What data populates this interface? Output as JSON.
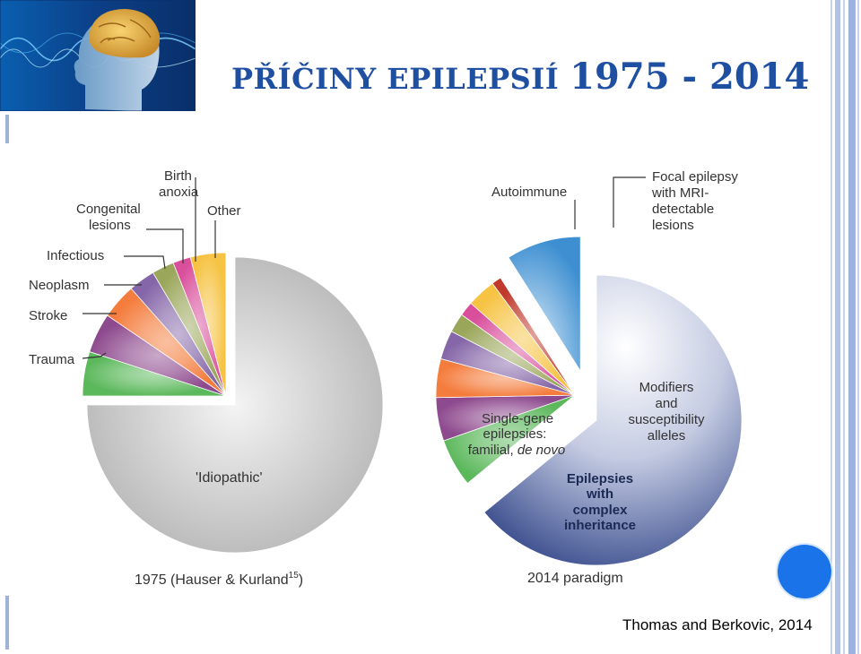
{
  "slide": {
    "title_part1": "PŘÍČINY EPILEPSIÍ",
    "title_part2": "1975 - 2014",
    "citation": "Thomas and Berkovic, 2014"
  },
  "colors": {
    "title": "#1e4fa1",
    "accent_dot": "#1a73e8",
    "idiopathic": "#d0d0d0",
    "trauma": "#5bb85b",
    "stroke": "#8e4a8e",
    "neoplasm": "#f47c3c",
    "infectious": "#8566a8",
    "congenital": "#9aa65a",
    "birth_anoxia": "#d94f9c",
    "other": "#f6c343",
    "autoimmune": "#c0392b",
    "focal": "#3d8fd1",
    "genetic": "#30468e"
  },
  "chart_data": [
    {
      "type": "pie",
      "title": "1975 (Hauser & Kurland",
      "title_superscript": "15",
      "title_close": ")",
      "slices": [
        {
          "label": "'Idiopathic'",
          "value": 75,
          "color": "#d0d0d0"
        },
        {
          "label": "Trauma",
          "value": 5,
          "color": "#5bb85b"
        },
        {
          "label": "Stroke",
          "value": 4.5,
          "color": "#8e4a8e"
        },
        {
          "label": "Neoplasm",
          "value": 4,
          "color": "#f47c3c"
        },
        {
          "label": "Infectious",
          "value": 3,
          "color": "#8566a8"
        },
        {
          "label": "Congenital lesions",
          "value": 2.5,
          "color": "#9aa65a"
        },
        {
          "label": "Birth anoxia",
          "value": 2,
          "color": "#d94f9c"
        },
        {
          "label": "Other",
          "value": 4,
          "color": "#f6c343"
        }
      ],
      "labels": {
        "idiopathic": "'Idiopathic'",
        "trauma": "Trauma",
        "stroke": "Stroke",
        "neoplasm": "Neoplasm",
        "infectious": "Infectious",
        "congenital_1": "Congenital",
        "congenital_2": "lesions",
        "birth_1": "Birth",
        "birth_2": "anoxia",
        "other": "Other"
      }
    },
    {
      "type": "pie",
      "title": "2014 paradigm",
      "slices": [
        {
          "label": "Genetic (single-gene / complex inheritance / modifiers)",
          "value": 57,
          "color": "#30468e"
        },
        {
          "label": "Trauma",
          "value": 5,
          "color": "#5bb85b"
        },
        {
          "label": "Stroke",
          "value": 4.5,
          "color": "#8e4a8e"
        },
        {
          "label": "Neoplasm",
          "value": 4,
          "color": "#f47c3c"
        },
        {
          "label": "Infectious",
          "value": 3,
          "color": "#8566a8"
        },
        {
          "label": "Congenital lesions",
          "value": 2,
          "color": "#9aa65a"
        },
        {
          "label": "Birth anoxia",
          "value": 1.5,
          "color": "#d94f9c"
        },
        {
          "label": "Other",
          "value": 3,
          "color": "#f6c343"
        },
        {
          "label": "Autoimmune",
          "value": 1,
          "color": "#c0392b"
        },
        {
          "label": "Focal epilepsy with MRI-detectable lesions",
          "value": 8,
          "color": "#3d8fd1"
        }
      ],
      "labels": {
        "autoimmune": "Autoimmune",
        "focal_1": "Focal epilepsy",
        "focal_2": "with MRI-",
        "focal_3": "detectable",
        "focal_4": "lesions",
        "modifiers_1": "Modifiers",
        "modifiers_2": "and",
        "modifiers_3": "susceptibility",
        "modifiers_4": "alleles",
        "single_1": "Single-gene",
        "single_2": "epilepsies:",
        "single_3": "familial,",
        "single_4": "de novo",
        "complex_1": "Epilepsies",
        "complex_2": "with",
        "complex_3": "complex",
        "complex_4": "inheritance"
      }
    }
  ]
}
